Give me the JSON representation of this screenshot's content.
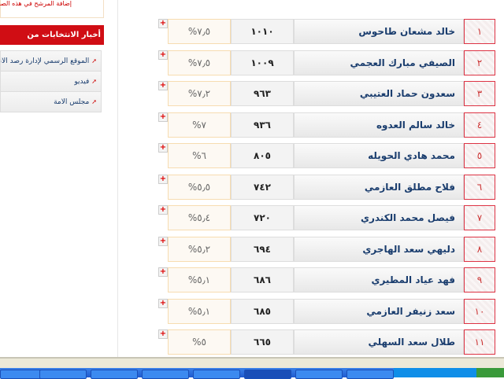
{
  "top_note": "إضافة المرشح في هذه الصفحة",
  "sidebar": {
    "header": "أخبار الانتخابات من الانترنت",
    "items": [
      {
        "label": "الموقع الرسمي لإدارة رصد الانتخابات"
      },
      {
        "label": "فيديو"
      },
      {
        "label": "مجلس الامة"
      }
    ]
  },
  "results": [
    {
      "rank": "١",
      "name": "خالد مشعان طاحوس",
      "votes": "١٠١٠",
      "percent": "%٧٫٥"
    },
    {
      "rank": "٢",
      "name": "الصيفي مبارك العجمي",
      "votes": "١٠٠٩",
      "percent": "%٧٫٥"
    },
    {
      "rank": "٣",
      "name": "سعدون حماد العتيبي",
      "votes": "٩٦٣",
      "percent": "%٧٫٢"
    },
    {
      "rank": "٤",
      "name": "خالد سالم العدوه",
      "votes": "٩٣٦",
      "percent": "%٧"
    },
    {
      "rank": "٥",
      "name": "محمد هادي الحويله",
      "votes": "٨٠٥",
      "percent": "%٦"
    },
    {
      "rank": "٦",
      "name": "فلاح مطلق العازمي",
      "votes": "٧٤٢",
      "percent": "%٥٫٥"
    },
    {
      "rank": "٧",
      "name": "فيصل محمد الكندري",
      "votes": "٧٢٠",
      "percent": "%٥٫٤"
    },
    {
      "rank": "٨",
      "name": "دليهي سعد الهاجري",
      "votes": "٦٩٤",
      "percent": "%٥٫٢"
    },
    {
      "rank": "٩",
      "name": "فهد عياد المطيري",
      "votes": "٦٨٦",
      "percent": "%٥٫١"
    },
    {
      "rank": "١٠",
      "name": "سعد زنيفر العازمي",
      "votes": "٦٨٥",
      "percent": "%٥٫١"
    },
    {
      "rank": "١١",
      "name": "طلال سعد السهلي",
      "votes": "٦٦٥",
      "percent": "%٥"
    }
  ],
  "colors": {
    "accent": "#d00d14",
    "name_text": "#1a3d6e"
  }
}
